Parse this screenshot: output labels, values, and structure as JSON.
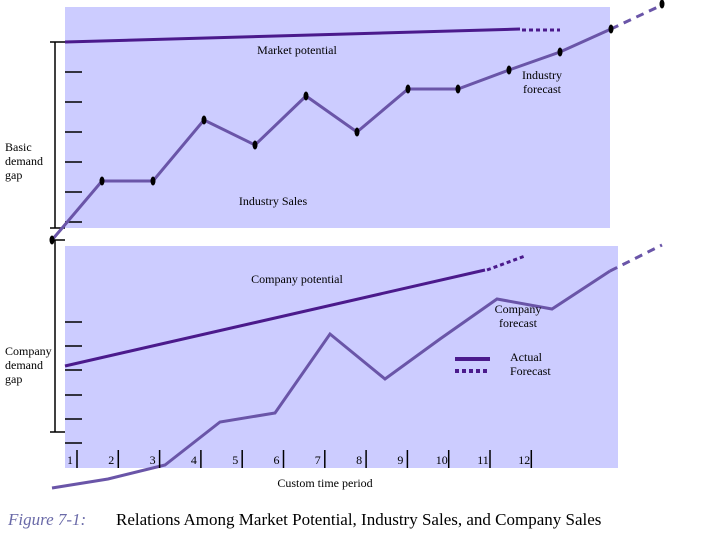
{
  "labels": {
    "market_potential": "Market potential",
    "industry_forecast": [
      "Industry",
      "forecast"
    ],
    "basic_demand_gap": [
      "Basic",
      "demand",
      "gap"
    ],
    "industry_sales": "Industry Sales",
    "company_potential": "Company potential",
    "company_forecast": [
      "Company",
      "forecast"
    ],
    "company_demand_gap": [
      "Company",
      "demand",
      "gap"
    ],
    "legend": [
      "Actual",
      "Forecast"
    ],
    "x_axis_label": "Custom time period",
    "x_ticks": [
      1,
      2,
      3,
      4,
      5,
      6,
      7,
      8,
      9,
      10,
      11,
      12
    ]
  },
  "caption": {
    "number": "Figure 7-1:",
    "text": "Relations Among Market Potential, Industry Sales, and Company Sales"
  }
}
